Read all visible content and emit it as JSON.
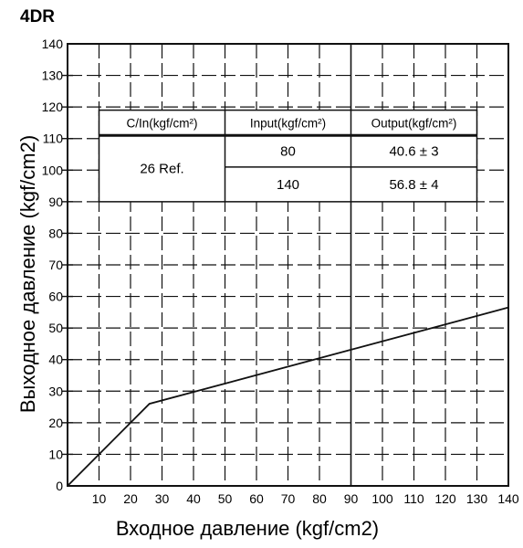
{
  "chart_data": {
    "type": "line",
    "title": "4DR",
    "xlabel": "Входное давление (kgf/cm2)",
    "ylabel": "Выходное давление (kgf/cm2)",
    "xlim": [
      0,
      140
    ],
    "ylim": [
      0,
      140
    ],
    "x_ticks": [
      "10",
      "20",
      "30",
      "40",
      "50",
      "60",
      "70",
      "80",
      "90",
      "100",
      "110",
      "120",
      "130",
      "140"
    ],
    "y_ticks": [
      "0",
      "10",
      "20",
      "30",
      "40",
      "50",
      "60",
      "70",
      "80",
      "90",
      "100",
      "110",
      "120",
      "130",
      "140"
    ],
    "grid": true,
    "series": [
      {
        "x": [
          0,
          26,
          140
        ],
        "y": [
          0,
          26,
          56.5
        ]
      }
    ],
    "table": {
      "headers": [
        "C/In(kgf/cm²)",
        "Input(kgf/cm²)",
        "Output(kgf/cm²)"
      ],
      "cin": "26 Ref.",
      "rows": [
        {
          "input": "80",
          "output": "40.6 ± 3"
        },
        {
          "input": "140",
          "output": "56.8 ± 4"
        }
      ]
    }
  }
}
